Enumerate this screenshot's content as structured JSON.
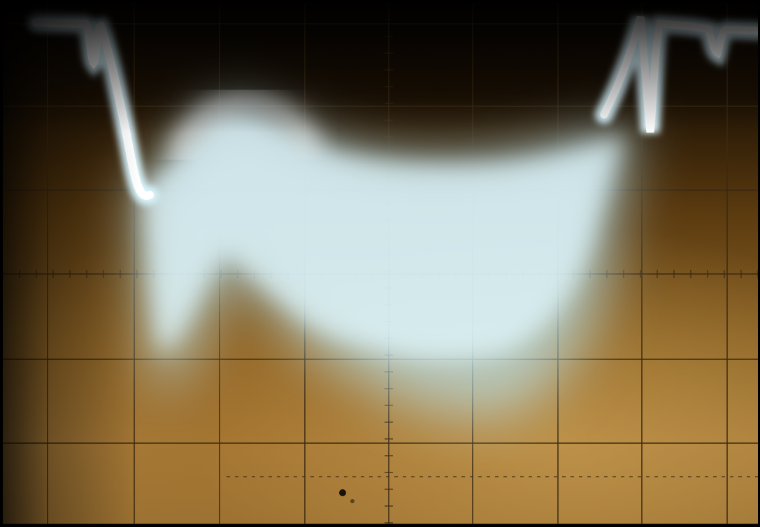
{
  "image": {
    "subject": "oscilloscope-trace",
    "colors": {
      "trace": "#cdf3ff",
      "trace_core": "#ffffff",
      "graticule": "#3b2a12",
      "screen_warm": "#a87d3c",
      "screen_dark": "#120a03"
    }
  }
}
